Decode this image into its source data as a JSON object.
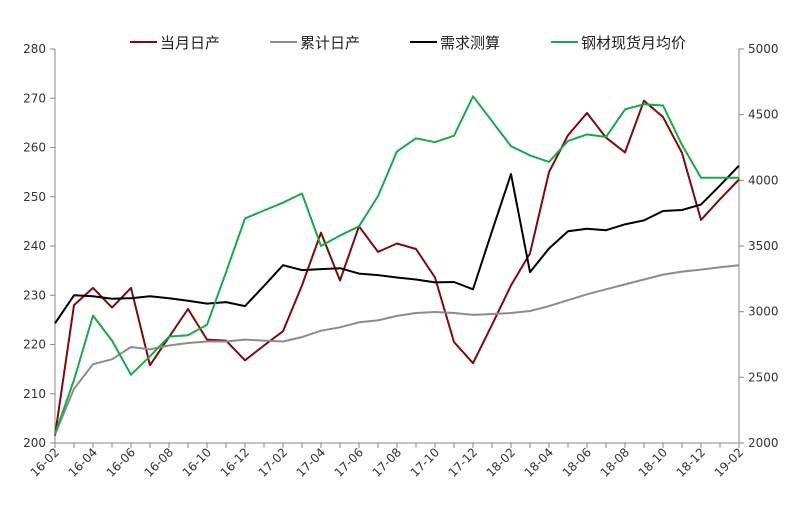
{
  "chart_data": {
    "type": "line",
    "categories": [
      "16-02",
      "16-03",
      "16-04",
      "16-05",
      "16-06",
      "16-07",
      "16-08",
      "16-09",
      "16-10",
      "16-11",
      "16-12",
      "17-01",
      "17-02",
      "17-03",
      "17-04",
      "17-05",
      "17-06",
      "17-07",
      "17-08",
      "17-09",
      "17-10",
      "17-11",
      "17-12",
      "18-01",
      "18-02",
      "18-03",
      "18-04",
      "18-05",
      "18-06",
      "18-07",
      "18-08",
      "18-09",
      "18-10",
      "18-11",
      "18-12",
      "19-01",
      "19-02"
    ],
    "x_tick_labels": [
      "16-02",
      "16-04",
      "16-06",
      "16-08",
      "16-10",
      "16-12",
      "17-02",
      "17-04",
      "17-06",
      "17-08",
      "17-10",
      "17-12",
      "18-02",
      "18-04",
      "18-06",
      "18-08",
      "18-10",
      "18-12",
      "19-02"
    ],
    "left_axis": {
      "ylim": [
        200,
        280
      ],
      "ticks": [
        200,
        210,
        220,
        230,
        240,
        250,
        260,
        270,
        280
      ]
    },
    "right_axis": {
      "ylim": [
        2000,
        5000
      ],
      "ticks": [
        2000,
        2500,
        3000,
        3500,
        4000,
        4500,
        5000
      ]
    },
    "legend_position": "top",
    "grid": false,
    "series": [
      {
        "name": "当月日产",
        "axis": "left",
        "color": "#7b0c0c",
        "values": [
          201.5,
          228.0,
          231.5,
          227.5,
          231.5,
          215.8,
          221.5,
          227.2,
          221.0,
          220.8,
          216.8,
          219.8,
          222.7,
          232.0,
          242.7,
          233.0,
          244.0,
          238.8,
          240.5,
          239.4,
          233.6,
          220.5,
          216.2,
          224.0,
          232.0,
          238.5,
          255.0,
          262.5,
          267.0,
          262.0,
          259.0,
          269.5,
          266.2,
          258.9,
          245.3,
          249.5,
          253.5
        ]
      },
      {
        "name": "累计日产",
        "axis": "left",
        "color": "#8c8c8c",
        "values": [
          201.7,
          211.0,
          216.0,
          217.0,
          219.5,
          219.0,
          219.8,
          220.3,
          220.6,
          220.6,
          221.0,
          220.8,
          220.6,
          221.5,
          222.8,
          223.5,
          224.5,
          224.9,
          225.8,
          226.4,
          226.6,
          226.4,
          226.0,
          226.2,
          226.4,
          226.8,
          227.8,
          229.0,
          230.2,
          231.2,
          232.2,
          233.2,
          234.2,
          234.8,
          235.2,
          235.7,
          236.1
        ]
      },
      {
        "name": "需求测算",
        "axis": "left",
        "color": "#000000",
        "values": [
          224.3,
          230.0,
          229.8,
          229.3,
          229.4,
          229.8,
          229.4,
          228.9,
          228.3,
          228.6,
          227.8,
          231.9,
          236.1,
          235.1,
          235.3,
          235.5,
          234.4,
          234.1,
          233.6,
          233.2,
          232.6,
          232.7,
          231.2,
          243.0,
          254.6,
          234.7,
          239.5,
          243.0,
          243.5,
          243.2,
          244.4,
          245.2,
          247.1,
          247.3,
          248.4,
          252.3,
          256.3
        ]
      },
      {
        "name": "钢材现货月均价",
        "axis": "right",
        "color": "#1aa84b",
        "values": [
          2070,
          2480,
          2970,
          2780,
          2520,
          2660,
          2810,
          2820,
          2900,
          3300,
          3710,
          3770,
          3830,
          3900,
          3500,
          3580,
          3650,
          3880,
          4220,
          4320,
          4290,
          4340,
          4640,
          4450,
          4260,
          4190,
          4140,
          4300,
          4350,
          4330,
          4540,
          4580,
          4570,
          4270,
          4020,
          4020,
          4020
        ]
      }
    ]
  }
}
